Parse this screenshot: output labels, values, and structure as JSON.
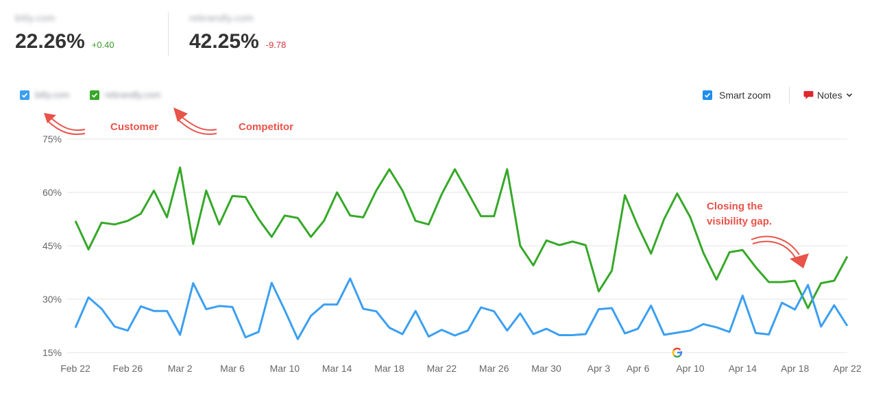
{
  "metrics": [
    {
      "domain": "bitly.com",
      "value": "22.26%",
      "delta": "+0.40",
      "delta_color": "#3a9b2c"
    },
    {
      "domain": "rebrandly.com",
      "value": "42.25%",
      "delta": "-9.78",
      "delta_color": "#d2343c"
    }
  ],
  "legend": [
    {
      "domain": "bitly.com",
      "color": "#3b9ff1"
    },
    {
      "domain": "rebrandly.com",
      "color": "#35a828"
    }
  ],
  "toolbar": {
    "smart_zoom_label": "Smart zoom",
    "smart_zoom_checked": true,
    "notes_label": "Notes"
  },
  "annotations": {
    "customer": "Customer",
    "competitor": "Competitor",
    "closing_line1": "Closing the",
    "closing_line2": "visibility gap.",
    "color": "#e8534a"
  },
  "icons": {
    "checkbox": "check-icon",
    "notes": "speech-bubble-icon",
    "dropdown": "chevron-down-icon",
    "google_marker": "google-g-icon"
  },
  "chart_data": {
    "type": "line",
    "ylim": [
      15,
      75
    ],
    "yticks": [
      "15%",
      "30%",
      "45%",
      "60%",
      "75%"
    ],
    "ytick_values": [
      15,
      30,
      45,
      60,
      75
    ],
    "grid": true,
    "xtick_labels": [
      "Feb 22",
      "Feb 26",
      "Mar 2",
      "Mar 6",
      "Mar 10",
      "Mar 14",
      "Mar 18",
      "Mar 22",
      "Mar 26",
      "Mar 30",
      "Apr 3",
      "Apr 6",
      "Apr 10",
      "Apr 14",
      "Apr 18",
      "Apr 22"
    ],
    "xtick_index": [
      0,
      4,
      8,
      12,
      16,
      20,
      24,
      28,
      32,
      36,
      40,
      43,
      47,
      51,
      55,
      59
    ],
    "google_update_index": 46,
    "series": [
      {
        "color": "#35a828",
        "values": [
          52,
          44,
          51.5,
          51,
          52,
          54,
          60.5,
          53,
          67,
          45.5,
          60.5,
          51,
          59,
          58.7,
          52.5,
          47.5,
          53.5,
          52.8,
          47.5,
          52,
          60,
          53.5,
          53,
          60.5,
          66.5,
          60.5,
          52,
          51,
          59.5,
          66.5,
          60,
          53.3,
          53.3,
          66.5,
          45,
          39.5,
          46.5,
          45.2,
          46.2,
          45.2,
          32.2,
          38,
          59.2,
          50.5,
          42.8,
          52.5,
          59.7,
          53,
          43,
          35.5,
          43.2,
          43.8,
          39,
          34.8,
          34.8,
          35.2,
          27.5,
          34.5,
          35.2,
          42
        ]
      },
      {
        "color": "#3b9ff1",
        "values": [
          22,
          30.5,
          27.3,
          22.3,
          21.2,
          28,
          26.7,
          26.7,
          20,
          34.5,
          27.2,
          28.1,
          27.8,
          19.3,
          20.8,
          34.6,
          26.9,
          18.8,
          25.3,
          28.5,
          28.5,
          35.8,
          27.3,
          26.6,
          22,
          20.2,
          26.7,
          19.5,
          21.4,
          19.8,
          21.2,
          27.7,
          26.6,
          21.2,
          26,
          20.2,
          21.7,
          19.9,
          19.9,
          20.2,
          27.2,
          27.5,
          20.4,
          21.7,
          28.2,
          20,
          20.6,
          21.2,
          23,
          22.1,
          20.8,
          31,
          20.5,
          20.1,
          29,
          27.1,
          34,
          22.3,
          28.3,
          22.5
        ]
      }
    ]
  }
}
